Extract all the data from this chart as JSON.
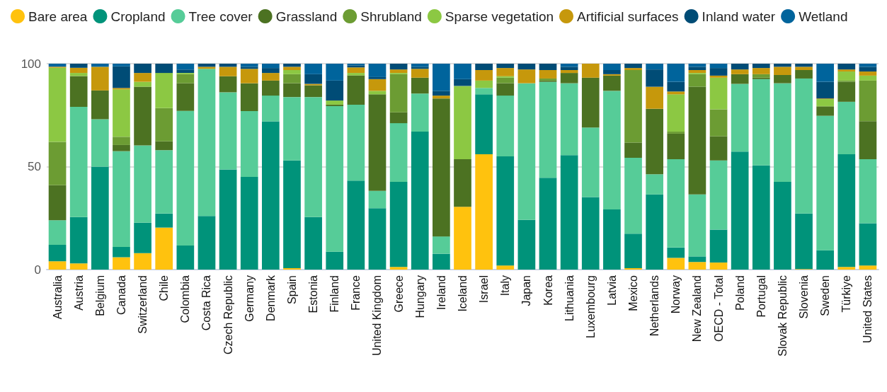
{
  "chart_data": {
    "type": "bar",
    "stacked": true,
    "categories": [
      "Australia",
      "Austria",
      "Belgium",
      "Canada",
      "Switzerland",
      "Chile",
      "Colombia",
      "Costa Rica",
      "Czech Republic",
      "Germany",
      "Denmark",
      "Spain",
      "Estonia",
      "Finland",
      "France",
      "United Kingdom",
      "Greece",
      "Hungary",
      "Ireland",
      "Iceland",
      "Israel",
      "Italy",
      "Japan",
      "Korea",
      "Lithuania",
      "Luxembourg",
      "Latvia",
      "Mexico",
      "Netherlands",
      "Norway",
      "New Zealand",
      "OECD - Total",
      "Poland",
      "Portugal",
      "Slovak Republic",
      "Slovenia",
      "Sweden",
      "Türkiye",
      "United States"
    ],
    "series": [
      {
        "name": "Bare area",
        "color": "#ffc20e",
        "values": [
          4,
          3,
          0,
          6,
          8,
          20.4,
          0,
          0,
          0,
          0,
          0,
          0.7,
          0,
          0,
          0,
          0,
          1.3,
          0,
          0,
          30.5,
          56,
          2,
          0,
          0,
          0,
          0,
          0,
          0.7,
          0,
          5.7,
          3.7,
          3.4,
          0,
          0,
          0,
          0.3,
          0,
          1.3,
          2
        ]
      },
      {
        "name": "Cropland",
        "color": "#00937a",
        "values": [
          8,
          22.5,
          50,
          5,
          14.8,
          6.8,
          11.7,
          26,
          48.6,
          45,
          72,
          52.3,
          25.5,
          8.7,
          43.2,
          29.8,
          41.3,
          67,
          7.7,
          0,
          29.1,
          53,
          24.1,
          44.6,
          55.6,
          35.2,
          29.2,
          16.7,
          36.5,
          5,
          2.7,
          16,
          57.3,
          50.6,
          42.6,
          26.9,
          9.4,
          54.7,
          20.5
        ]
      },
      {
        "name": "Tree cover",
        "color": "#56cc98",
        "values": [
          12,
          53.5,
          23,
          46.5,
          37.5,
          30.8,
          65.4,
          71.5,
          37.5,
          32,
          12.5,
          30.8,
          58.3,
          70.7,
          36.9,
          8.4,
          28.5,
          18.5,
          8.4,
          0,
          3.1,
          29.5,
          66.4,
          46.6,
          34.9,
          33.8,
          57.6,
          36.9,
          9.8,
          42.9,
          30.1,
          33.6,
          32.9,
          41.9,
          47.9,
          65.6,
          65.3,
          25.5,
          31.1
        ]
      },
      {
        "name": "Grassland",
        "color": "#4c7222",
        "values": [
          17,
          15,
          14,
          3,
          28.5,
          4.3,
          13.4,
          0,
          7.8,
          13.5,
          7.3,
          6.7,
          5.7,
          0.7,
          14.2,
          46.9,
          5.3,
          7.7,
          67,
          23.1,
          0,
          6,
          0,
          0.6,
          5,
          24.2,
          7.4,
          7.4,
          31.8,
          12.4,
          52.3,
          11.7,
          4.7,
          0.7,
          4,
          4.1,
          4.4,
          9.7,
          18.5
        ]
      },
      {
        "name": "Shrubland",
        "color": "#6c9c33",
        "values": [
          21,
          0,
          0,
          4,
          0,
          16.1,
          4.4,
          0,
          0,
          0,
          0,
          4.4,
          0,
          0,
          0,
          0,
          18.5,
          0,
          0,
          0,
          0,
          2.7,
          0,
          1,
          0,
          0,
          0,
          35.2,
          0,
          1,
          6.1,
          13.1,
          0,
          1.7,
          0,
          0,
          0.3,
          0.6,
          19.7
        ]
      },
      {
        "name": "Sparse vegetation",
        "color": "#8cc843",
        "values": [
          36,
          1.5,
          0,
          23,
          2.4,
          17.1,
          0.6,
          0,
          0,
          0,
          0,
          2,
          0,
          2,
          1.2,
          1.7,
          0.6,
          0,
          0,
          35.6,
          3.6,
          0.7,
          0,
          0,
          0,
          0,
          0,
          0,
          0,
          18.1,
          0.6,
          15.4,
          0,
          0,
          0,
          0,
          3.4,
          4.4,
          2.4
        ]
      },
      {
        "name": "Artificial surfaces",
        "color": "#c6980c",
        "values": [
          0.5,
          2.5,
          11.5,
          0.7,
          4.3,
          0,
          0,
          1,
          4.6,
          7,
          3.7,
          1.6,
          0.7,
          0,
          2.7,
          5.7,
          1.7,
          4.3,
          1.4,
          0,
          5.1,
          4,
          6.7,
          4.1,
          1.4,
          6.8,
          0.7,
          1,
          10.7,
          1.4,
          1.4,
          1,
          2.3,
          3,
          4,
          1.6,
          0.3,
          1,
          2
        ]
      },
      {
        "name": "Inland water",
        "color": "#004c76",
        "values": [
          0,
          2,
          0,
          10.5,
          4.5,
          4.5,
          1.7,
          1.5,
          1.5,
          1,
          2.4,
          1.5,
          4.7,
          9.7,
          1,
          1,
          2.8,
          1,
          2.3,
          3.3,
          3.1,
          2.1,
          2.8,
          3.1,
          1.6,
          0,
          2,
          2.1,
          8.4,
          4.7,
          1.6,
          3.7,
          2.8,
          2.1,
          1.5,
          1.5,
          8.1,
          2.8,
          2.3
        ]
      },
      {
        "name": "Wetland",
        "color": "#00649c",
        "values": [
          1.5,
          0,
          1.5,
          1.3,
          0,
          0,
          2.8,
          0,
          0,
          1.5,
          2.1,
          0,
          5.1,
          8.2,
          0.8,
          6.5,
          0,
          1.5,
          13.2,
          7.5,
          0,
          0,
          0,
          0,
          1.5,
          0,
          3.1,
          0,
          2.8,
          8.8,
          1.5,
          2.1,
          0,
          0,
          0,
          0,
          8.8,
          0,
          1.5
        ]
      }
    ],
    "ylim": [
      0,
      100
    ],
    "yticks": [
      0,
      50,
      100
    ],
    "grid": "y",
    "legend": "top left"
  }
}
